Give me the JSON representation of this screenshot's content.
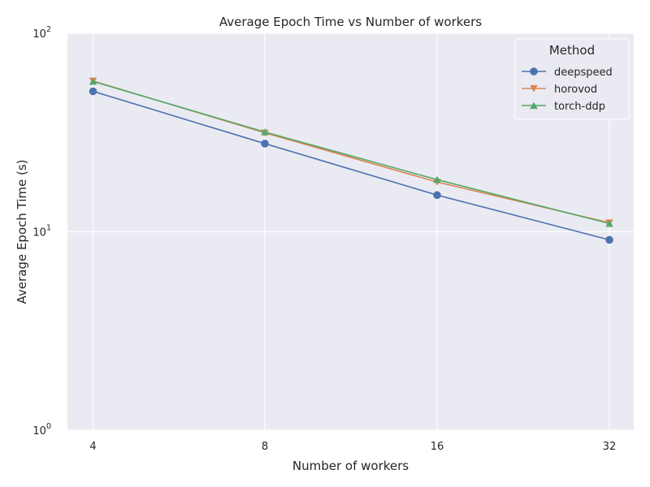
{
  "chart_data": {
    "type": "line",
    "title": "Average Epoch Time vs Number of workers",
    "xlabel": "Number of workers",
    "ylabel": "Average Epoch Time (s)",
    "x_scale": "log2",
    "y_scale": "log10",
    "x": [
      4,
      8,
      16,
      32
    ],
    "x_tick_labels": [
      "4",
      "8",
      "16",
      "32"
    ],
    "ylim": [
      1,
      100
    ],
    "y_ticks": [
      {
        "value": 1,
        "base": "10",
        "exp": "0"
      },
      {
        "value": 10,
        "base": "10",
        "exp": "1"
      },
      {
        "value": 100,
        "base": "10",
        "exp": "2"
      }
    ],
    "grid": true,
    "background": "#eaeaf2",
    "legend": {
      "title": "Method",
      "position": "top-right"
    },
    "series": [
      {
        "name": "deepspeed",
        "color": "#4c72b0",
        "marker": "circle",
        "values": [
          51.0,
          27.8,
          15.3,
          9.1
        ]
      },
      {
        "name": "horovod",
        "color": "#dd8452",
        "marker": "triangle-down",
        "values": [
          57.5,
          31.5,
          17.8,
          11.1
        ]
      },
      {
        "name": "torch-ddp",
        "color": "#55a868",
        "marker": "triangle-up",
        "values": [
          57.2,
          31.8,
          18.3,
          11.0
        ]
      }
    ]
  }
}
